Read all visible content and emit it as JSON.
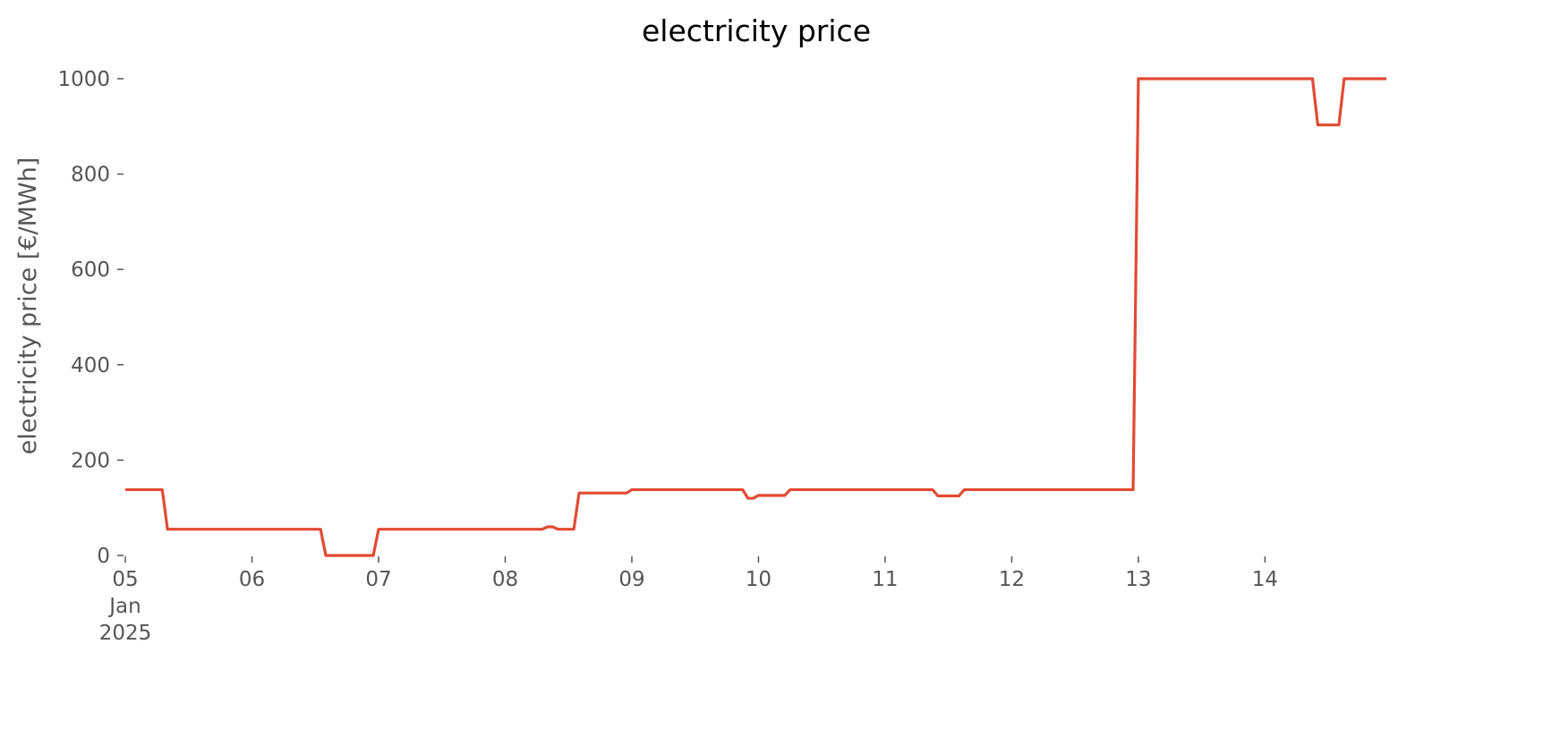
{
  "chart_data": {
    "type": "line",
    "title": "electricity price",
    "y_label": "electricity price [€/MWh]",
    "x": [
      "2025-01-05T00:00",
      "2025-01-05T07:00",
      "2025-01-05T08:00",
      "2025-01-06T13:00",
      "2025-01-06T14:00",
      "2025-01-06T23:00",
      "2025-01-07T00:00",
      "2025-01-08T07:00",
      "2025-01-08T08:00",
      "2025-01-08T09:00",
      "2025-01-08T10:00",
      "2025-01-08T13:00",
      "2025-01-08T14:00",
      "2025-01-08T23:00",
      "2025-01-09T00:00",
      "2025-01-09T21:00",
      "2025-01-09T22:00",
      "2025-01-09T23:00",
      "2025-01-10T00:00",
      "2025-01-10T05:00",
      "2025-01-10T06:00",
      "2025-01-11T09:00",
      "2025-01-11T10:00",
      "2025-01-11T14:00",
      "2025-01-11T15:00",
      "2025-01-12T23:00",
      "2025-01-13T00:00",
      "2025-01-14T09:00",
      "2025-01-14T10:00",
      "2025-01-14T14:00",
      "2025-01-14T15:00",
      "2025-01-14T23:00"
    ],
    "series": [
      {
        "name": "electricity price",
        "color": "#e24a33",
        "values": [
          138,
          138,
          55,
          55,
          0,
          0,
          55,
          55,
          60,
          60,
          55,
          55,
          131,
          131,
          138,
          138,
          120,
          120,
          126,
          126,
          138,
          138,
          125,
          125,
          138,
          138,
          1000,
          1000,
          903,
          903,
          1000,
          1000
        ]
      }
    ],
    "xlim": [
      "2025-01-05T00:00",
      "2025-01-14T23:00"
    ],
    "xticks": [
      {
        "value": "2025-01-05T00:00",
        "label": [
          "05",
          "Jan",
          "2025"
        ]
      },
      {
        "value": "2025-01-06T00:00",
        "label": "06"
      },
      {
        "value": "2025-01-07T00:00",
        "label": "07"
      },
      {
        "value": "2025-01-08T00:00",
        "label": "08"
      },
      {
        "value": "2025-01-09T00:00",
        "label": "09"
      },
      {
        "value": "2025-01-10T00:00",
        "label": "10"
      },
      {
        "value": "2025-01-11T00:00",
        "label": "11"
      },
      {
        "value": "2025-01-12T00:00",
        "label": "12"
      },
      {
        "value": "2025-01-13T00:00",
        "label": "13"
      },
      {
        "value": "2025-01-14T00:00",
        "label": "14"
      }
    ],
    "ylim": [
      0,
      1000
    ],
    "yticks": [
      0,
      200,
      400,
      600,
      800,
      1000
    ],
    "grid": false
  }
}
